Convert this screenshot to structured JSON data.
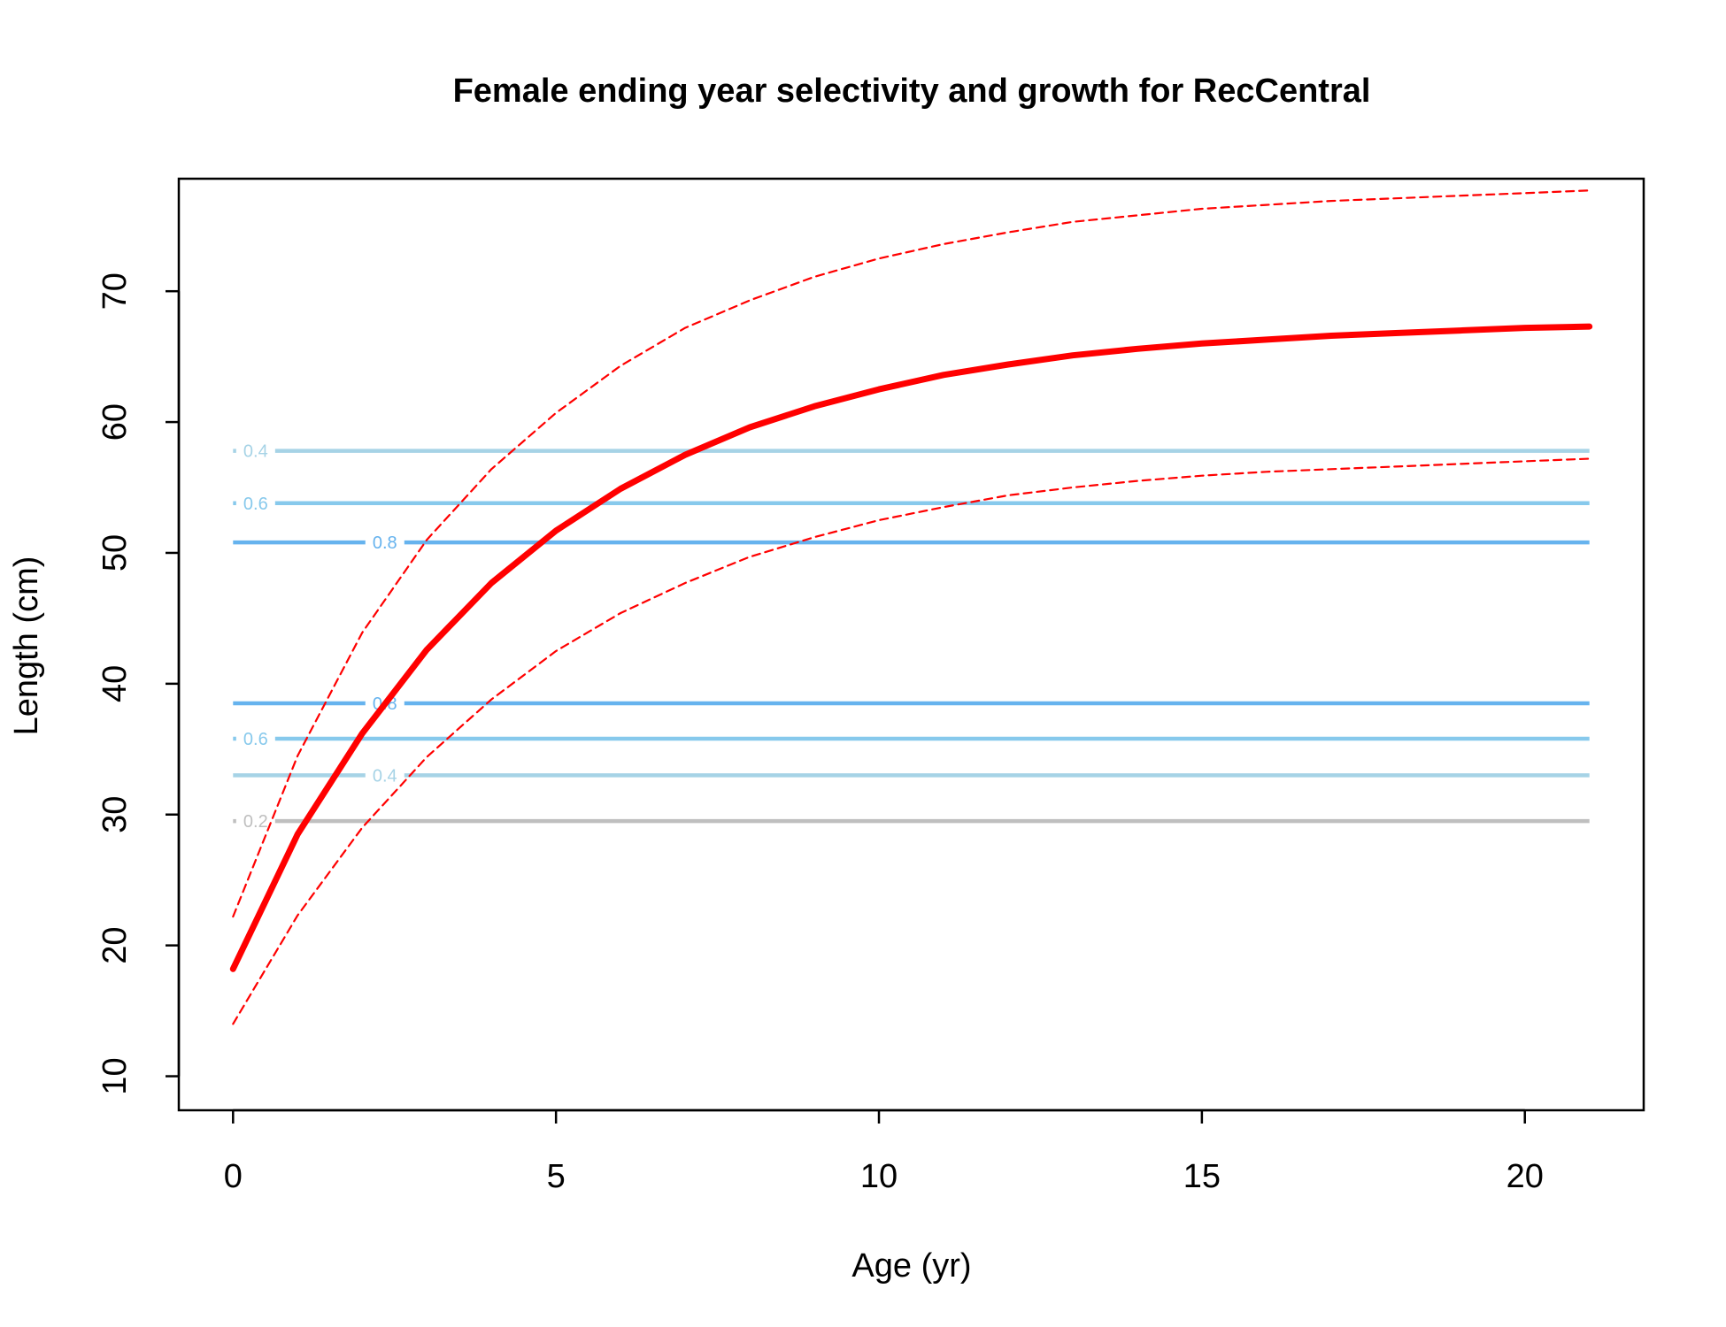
{
  "chart_data": {
    "type": "line",
    "title": "Female ending year selectivity and growth for RecCentral",
    "xlabel": "Age (yr)",
    "ylabel": "Length (cm)",
    "xlim": [
      -0.84,
      21.84
    ],
    "ylim": [
      7.4,
      78.6
    ],
    "x_ticks": [
      0,
      5,
      10,
      15,
      20
    ],
    "x_tick_labels": [
      "0",
      "5",
      "10",
      "15",
      "20"
    ],
    "y_ticks": [
      10,
      20,
      30,
      40,
      50,
      60,
      70
    ],
    "y_tick_labels": [
      "10",
      "20",
      "30",
      "40",
      "50",
      "60",
      "70"
    ],
    "grid": false,
    "series": [
      {
        "role": "mean-length",
        "color": "#ff0000",
        "x": [
          0,
          1,
          2,
          3,
          4,
          5,
          6,
          7,
          8,
          9,
          10,
          11,
          12,
          13,
          14,
          15,
          16,
          17,
          18,
          19,
          20,
          21
        ],
        "y": [
          18.2,
          28.5,
          36.2,
          42.6,
          47.7,
          51.7,
          54.9,
          57.5,
          59.6,
          61.2,
          62.5,
          63.6,
          64.4,
          65.1,
          65.6,
          66.0,
          66.3,
          66.6,
          66.8,
          67.0,
          67.2,
          67.3
        ]
      },
      {
        "role": "upper-interval",
        "color": "#ff0000",
        "x": [
          0,
          1,
          2,
          3,
          4,
          5,
          6,
          7,
          8,
          9,
          10,
          11,
          12,
          13,
          14,
          15,
          16,
          17,
          18,
          19,
          20,
          21
        ],
        "y": [
          22.2,
          34.5,
          43.9,
          51.0,
          56.4,
          60.7,
          64.3,
          67.2,
          69.3,
          71.1,
          72.5,
          73.6,
          74.5,
          75.3,
          75.8,
          76.3,
          76.6,
          76.9,
          77.1,
          77.3,
          77.5,
          77.7
        ]
      },
      {
        "role": "lower-interval",
        "color": "#ff0000",
        "x": [
          0,
          1,
          2,
          3,
          4,
          5,
          6,
          7,
          8,
          9,
          10,
          11,
          12,
          13,
          14,
          15,
          16,
          17,
          18,
          19,
          20,
          21
        ],
        "y": [
          14.0,
          22.3,
          29.0,
          34.4,
          38.8,
          42.5,
          45.4,
          47.7,
          49.7,
          51.2,
          52.5,
          53.5,
          54.4,
          55.0,
          55.5,
          55.9,
          56.2,
          56.4,
          56.6,
          56.8,
          57.0,
          57.2
        ]
      }
    ],
    "selectivity_contours": [
      {
        "level": "0.4",
        "length": 57.8,
        "color": "#a6d3e6",
        "label_x": 0.35
      },
      {
        "level": "0.6",
        "length": 53.8,
        "color": "#87c9ec",
        "label_x": 0.35
      },
      {
        "level": "0.8",
        "length": 50.8,
        "color": "#66b3ee",
        "label_x": 2.35
      },
      {
        "level": "0.8",
        "length": 38.5,
        "color": "#66b3ee",
        "label_x": 2.35
      },
      {
        "level": "0.6",
        "length": 35.8,
        "color": "#87c9ec",
        "label_x": 0.35
      },
      {
        "level": "0.4",
        "length": 33.0,
        "color": "#a6d3e6",
        "label_x": 2.35
      },
      {
        "level": "0.2",
        "length": 29.5,
        "color": "#bfbfbf",
        "label_x": 0.35
      }
    ],
    "contour_x_range": [
      0,
      21
    ]
  }
}
